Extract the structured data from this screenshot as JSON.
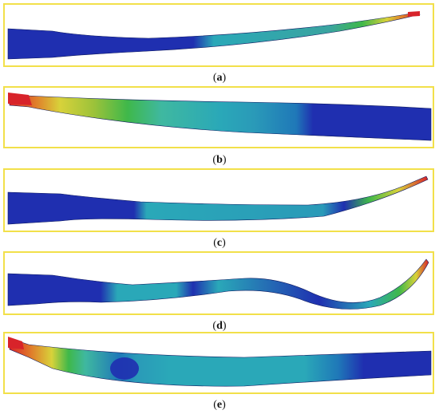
{
  "captions": {
    "a": "a",
    "b": "b",
    "c": "c",
    "d": "d",
    "e": "e"
  },
  "colors": {
    "frame": "#f2e04a",
    "blue": "#1f2fb0",
    "cyan": "#2aa8b8",
    "green": "#3fb84a",
    "yellow": "#d8d23a",
    "orange": "#e07a2a",
    "red": "#d8232a"
  }
}
